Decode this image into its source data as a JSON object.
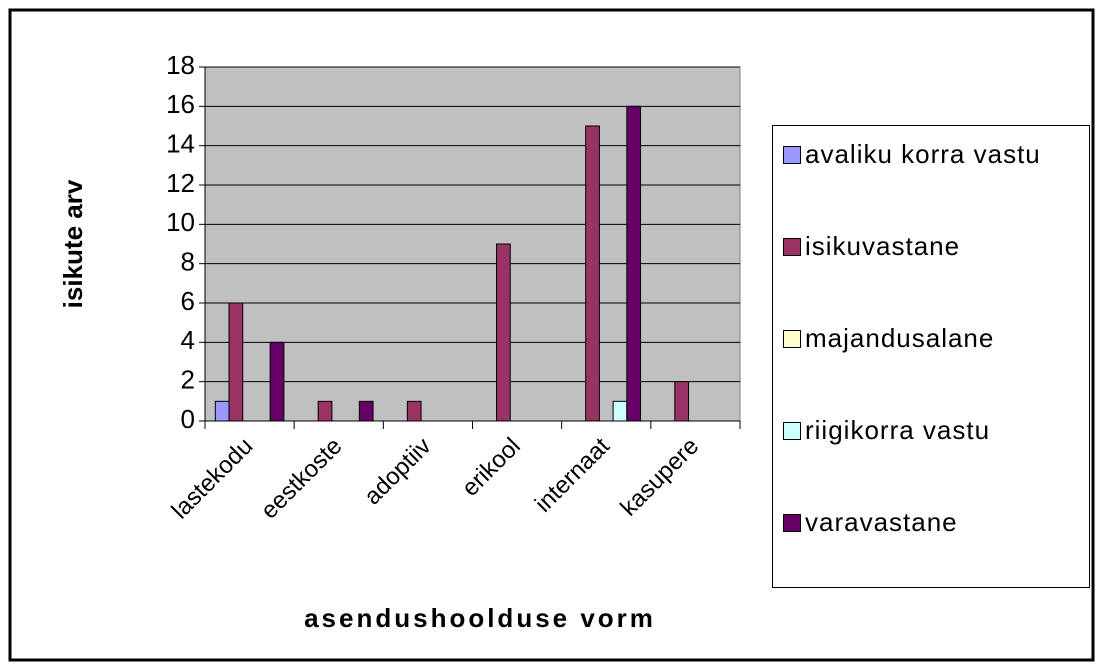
{
  "chart_data": {
    "type": "bar",
    "x_label": "asendushoolduse vorm",
    "y_label": "isikute arv",
    "categories": [
      "lastekodu",
      "eestkoste",
      "adoptiiv",
      "erikool",
      "internaat",
      "kasupere"
    ],
    "series": [
      {
        "name": "avaliku korra vastu",
        "color": "#9999ff",
        "values": [
          1,
          0,
          0,
          0,
          0,
          0
        ]
      },
      {
        "name": "isikuvastane",
        "color": "#993366",
        "values": [
          6,
          1,
          1,
          9,
          15,
          2
        ]
      },
      {
        "name": "majandusalane",
        "color": "#ffffcc",
        "values": [
          0,
          0,
          0,
          0,
          0,
          0
        ]
      },
      {
        "name": "riigikorra vastu",
        "color": "#ccffff",
        "values": [
          0,
          0,
          0,
          0,
          1,
          0
        ]
      },
      {
        "name": "varavastane",
        "color": "#660066",
        "values": [
          4,
          1,
          0,
          0,
          16,
          0
        ]
      }
    ],
    "ylim": [
      0,
      18
    ],
    "yticks": [
      0,
      2,
      4,
      6,
      8,
      10,
      12,
      14,
      16,
      18
    ],
    "grid": true,
    "plot_background": "#c0c0c0",
    "legend": "right"
  }
}
